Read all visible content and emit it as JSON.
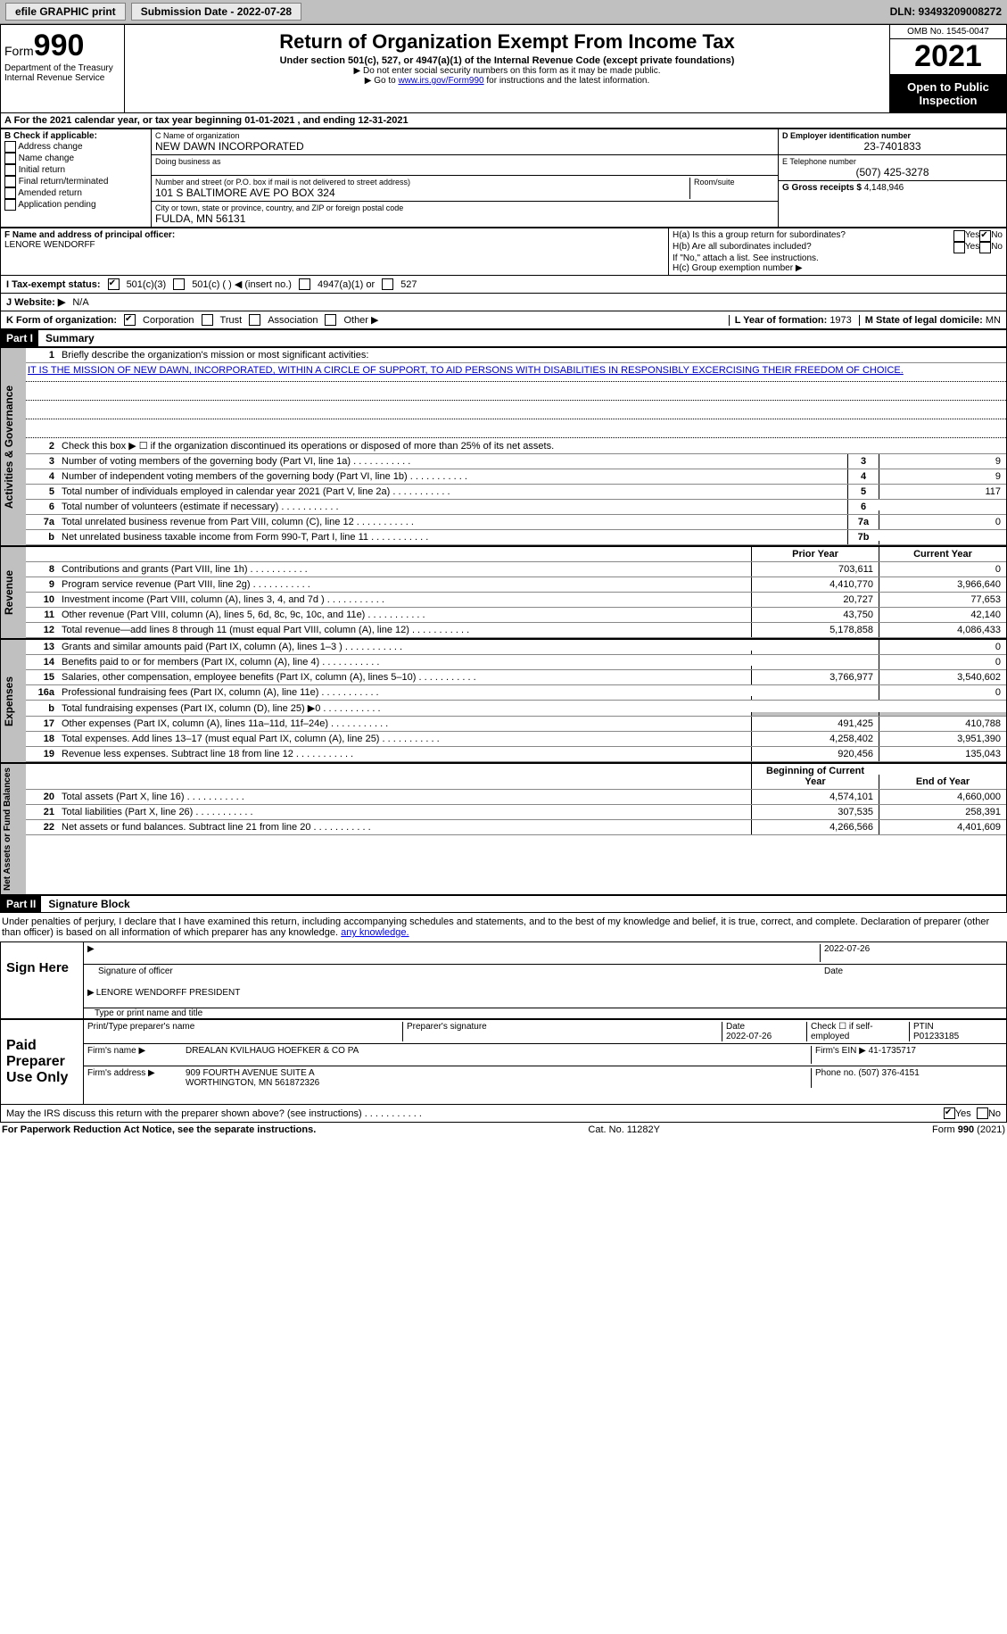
{
  "topbar": {
    "efile": "efile GRAPHIC print",
    "sub_label": "Submission Date - 2022-07-28",
    "dln": "DLN: 93493209008272"
  },
  "header": {
    "form_small": "Form",
    "form_big": "990",
    "dept": "Department of the Treasury",
    "irs": "Internal Revenue Service",
    "title": "Return of Organization Exempt From Income Tax",
    "sub": "Under section 501(c), 527, or 4947(a)(1) of the Internal Revenue Code (except private foundations)",
    "note1": "▶ Do not enter social security numbers on this form as it may be made public.",
    "note2_pre": "▶ Go to ",
    "note2_link": "www.irs.gov/Form990",
    "note2_post": " for instructions and the latest information.",
    "omb": "OMB No. 1545-0047",
    "year": "2021",
    "otp": "Open to Public Inspection"
  },
  "periodA": "A For the 2021 calendar year, or tax year beginning 01-01-2021   , and ending 12-31-2021",
  "B": {
    "lab": "B Check if applicable:",
    "items": [
      "Address change",
      "Name change",
      "Initial return",
      "Final return/terminated",
      "Amended return",
      "Application pending"
    ]
  },
  "C": {
    "name_lab": "C Name of organization",
    "name": "NEW DAWN INCORPORATED",
    "dba_lab": "Doing business as",
    "addr_lab": "Number and street (or P.O. box if mail is not delivered to street address)",
    "addr": "101 S BALTIMORE AVE PO BOX 324",
    "room_lab": "Room/suite",
    "city_lab": "City or town, state or province, country, and ZIP or foreign postal code",
    "city": "FULDA, MN  56131"
  },
  "D": {
    "lab": "D Employer identification number",
    "val": "23-7401833"
  },
  "E": {
    "lab": "E Telephone number",
    "val": "(507) 425-3278"
  },
  "G": {
    "lab": "G Gross receipts $",
    "val": "4,148,946"
  },
  "F": {
    "lab": "F  Name and address of principal officer:",
    "name": "LENORE WENDORFF"
  },
  "H": {
    "a_lab": "H(a)  Is this a group return for subordinates?",
    "b_lab": "H(b)  Are all subordinates included?",
    "b_note": "If \"No,\" attach a list. See instructions.",
    "c_lab": "H(c)  Group exemption number ▶",
    "yes": "Yes",
    "no": "No"
  },
  "I": {
    "lab": "I  Tax-exempt status:",
    "opts": [
      "501(c)(3)",
      "501(c) (  ) ◀ (insert no.)",
      "4947(a)(1) or",
      "527"
    ]
  },
  "J": {
    "lab": "J  Website: ▶",
    "val": "N/A"
  },
  "K": {
    "lab": "K Form of organization:",
    "opts": [
      "Corporation",
      "Trust",
      "Association",
      "Other ▶"
    ],
    "L_lab": "L Year of formation:",
    "L_val": "1973",
    "M_lab": "M State of legal domicile:",
    "M_val": "MN"
  },
  "part1": {
    "bar": "Part I",
    "title": "Summary"
  },
  "summary": {
    "line1_lab": "Briefly describe the organization's mission or most significant activities:",
    "mission": "IT IS THE MISSION OF NEW DAWN, INCORPORATED, WITHIN A CIRCLE OF SUPPORT, TO AID PERSONS WITH DISABILITIES IN RESPONSIBLY EXCERCISING THEIR FREEDOM OF CHOICE.",
    "line2_lab": "Check this box ▶ ☐ if the organization discontinued its operations or disposed of more than 25% of its net assets.",
    "rows_a": [
      {
        "n": "3",
        "d": "Number of voting members of the governing body (Part VI, line 1a)",
        "box": "3",
        "v": "9"
      },
      {
        "n": "4",
        "d": "Number of independent voting members of the governing body (Part VI, line 1b)",
        "box": "4",
        "v": "9"
      },
      {
        "n": "5",
        "d": "Total number of individuals employed in calendar year 2021 (Part V, line 2a)",
        "box": "5",
        "v": "117"
      },
      {
        "n": "6",
        "d": "Total number of volunteers (estimate if necessary)",
        "box": "6",
        "v": ""
      },
      {
        "n": "7a",
        "d": "Total unrelated business revenue from Part VIII, column (C), line 12",
        "box": "7a",
        "v": "0"
      },
      {
        "n": "b",
        "d": "Net unrelated business taxable income from Form 990-T, Part I, line 11",
        "box": "7b",
        "v": ""
      }
    ]
  },
  "rev": {
    "side": "Revenue",
    "hdr_py": "Prior Year",
    "hdr_cy": "Current Year",
    "rows": [
      {
        "n": "8",
        "d": "Contributions and grants (Part VIII, line 1h)",
        "py": "703,611",
        "cy": "0"
      },
      {
        "n": "9",
        "d": "Program service revenue (Part VIII, line 2g)",
        "py": "4,410,770",
        "cy": "3,966,640"
      },
      {
        "n": "10",
        "d": "Investment income (Part VIII, column (A), lines 3, 4, and 7d )",
        "py": "20,727",
        "cy": "77,653"
      },
      {
        "n": "11",
        "d": "Other revenue (Part VIII, column (A), lines 5, 6d, 8c, 9c, 10c, and 11e)",
        "py": "43,750",
        "cy": "42,140"
      },
      {
        "n": "12",
        "d": "Total revenue—add lines 8 through 11 (must equal Part VIII, column (A), line 12)",
        "py": "5,178,858",
        "cy": "4,086,433"
      }
    ]
  },
  "exp": {
    "side": "Expenses",
    "rows": [
      {
        "n": "13",
        "d": "Grants and similar amounts paid (Part IX, column (A), lines 1–3 )",
        "py": "",
        "cy": "0"
      },
      {
        "n": "14",
        "d": "Benefits paid to or for members (Part IX, column (A), line 4)",
        "py": "",
        "cy": "0"
      },
      {
        "n": "15",
        "d": "Salaries, other compensation, employee benefits (Part IX, column (A), lines 5–10)",
        "py": "3,766,977",
        "cy": "3,540,602"
      },
      {
        "n": "16a",
        "d": "Professional fundraising fees (Part IX, column (A), line 11e)",
        "py": "",
        "cy": "0"
      },
      {
        "n": "b",
        "d": "Total fundraising expenses (Part IX, column (D), line 25) ▶0",
        "py": "SHADE",
        "cy": "SHADE"
      },
      {
        "n": "17",
        "d": "Other expenses (Part IX, column (A), lines 11a–11d, 11f–24e)",
        "py": "491,425",
        "cy": "410,788"
      },
      {
        "n": "18",
        "d": "Total expenses. Add lines 13–17 (must equal Part IX, column (A), line 25)",
        "py": "4,258,402",
        "cy": "3,951,390"
      },
      {
        "n": "19",
        "d": "Revenue less expenses. Subtract line 18 from line 12",
        "py": "920,456",
        "cy": "135,043"
      }
    ]
  },
  "nab": {
    "side": "Net Assets or Fund Balances",
    "hdr_py": "Beginning of Current Year",
    "hdr_cy": "End of Year",
    "rows": [
      {
        "n": "20",
        "d": "Total assets (Part X, line 16)",
        "py": "4,574,101",
        "cy": "4,660,000"
      },
      {
        "n": "21",
        "d": "Total liabilities (Part X, line 26)",
        "py": "307,535",
        "cy": "258,391"
      },
      {
        "n": "22",
        "d": "Net assets or fund balances. Subtract line 21 from line 20",
        "py": "4,266,566",
        "cy": "4,401,609"
      }
    ]
  },
  "part2": {
    "bar": "Part II",
    "title": "Signature Block"
  },
  "penalty": "Under penalties of perjury, I declare that I have examined this return, including accompanying schedules and statements, and to the best of my knowledge and belief, it is true, correct, and complete. Declaration of preparer (other than officer) is based on all information of which preparer has any knowledge.",
  "sign": {
    "here": "Sign Here",
    "date": "2022-07-26",
    "sig_lab": "Signature of officer",
    "date_lab": "Date",
    "name": "LENORE WENDORFF  PRESIDENT",
    "name_lab": "Type or print name and title"
  },
  "paid": {
    "label": "Paid Preparer Use Only",
    "print_lab": "Print/Type preparer's name",
    "sig_lab": "Preparer's signature",
    "date_lab": "Date",
    "date": "2022-07-26",
    "chk_lab": "Check ☐ if self-employed",
    "ptin_lab": "PTIN",
    "ptin": "P01233185",
    "firm_name_lab": "Firm's name   ▶",
    "firm_name": "DREALAN KVILHAUG HOEFKER & CO PA",
    "firm_ein_lab": "Firm's EIN ▶",
    "firm_ein": "41-1735717",
    "firm_addr_lab": "Firm's address ▶",
    "firm_addr1": "909 FOURTH AVENUE SUITE A",
    "firm_addr2": "WORTHINGTON, MN  561872326",
    "phone_lab": "Phone no.",
    "phone": "(507) 376-4151"
  },
  "discuss": {
    "q": "May the IRS discuss this return with the preparer shown above? (see instructions)",
    "yes": "Yes",
    "no": "No"
  },
  "footer": {
    "pra": "For Paperwork Reduction Act Notice, see the separate instructions.",
    "cat": "Cat. No. 11282Y",
    "form": "Form 990 (2021)"
  },
  "side_gov": "Activities & Governance"
}
